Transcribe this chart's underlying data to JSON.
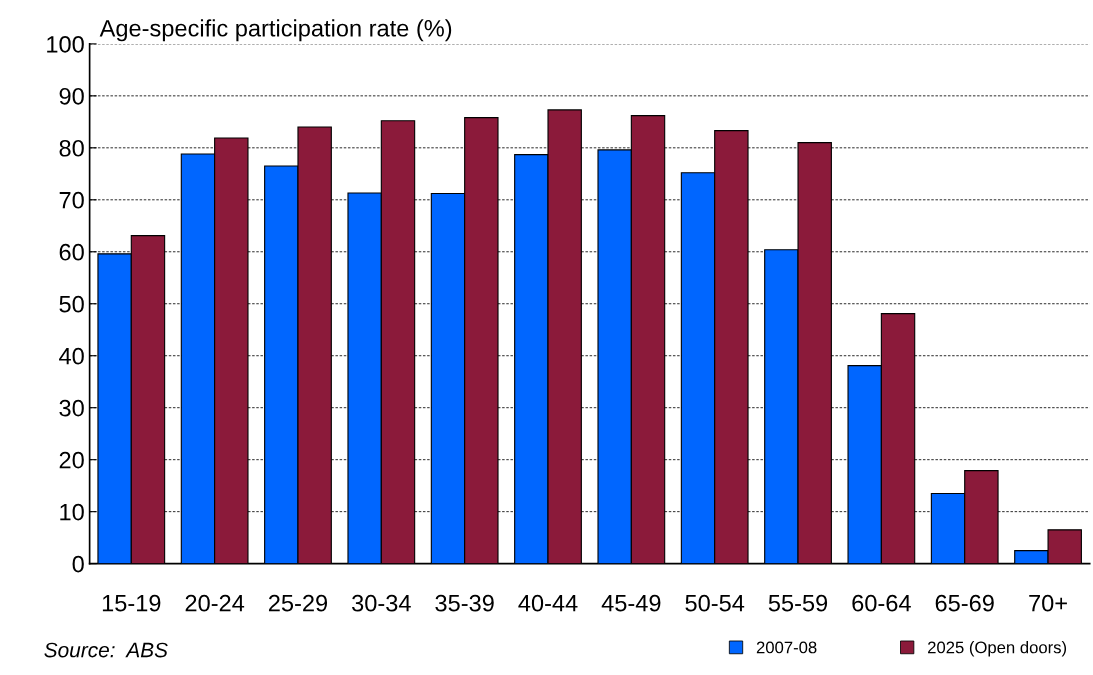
{
  "chart_data": {
    "type": "bar",
    "ylabel": "Age-specific participation rate (%)",
    "categories": [
      "15-19",
      "20-24",
      "25-29",
      "30-34",
      "35-39",
      "40-44",
      "45-49",
      "50-54",
      "55-59",
      "60-64",
      "65-69",
      "70+"
    ],
    "series": [
      {
        "name": "2007-08",
        "color": "#0066ff",
        "values": [
          59.6,
          78.8,
          76.5,
          71.3,
          71.2,
          78.7,
          79.6,
          75.2,
          60.4,
          38.1,
          13.5,
          2.5
        ]
      },
      {
        "name": "2025 (Open doors)",
        "color": "#8b1a3a",
        "values": [
          63.1,
          81.9,
          84.0,
          85.2,
          85.8,
          87.3,
          86.2,
          83.3,
          81.0,
          48.1,
          17.9,
          6.5
        ]
      }
    ],
    "ylim": [
      0,
      100
    ],
    "yticks": [
      0,
      10,
      20,
      30,
      40,
      50,
      60,
      70,
      80,
      90,
      100
    ],
    "grid": "y",
    "legend": "bottom right",
    "annotations": [
      "Source:  ABS"
    ]
  }
}
